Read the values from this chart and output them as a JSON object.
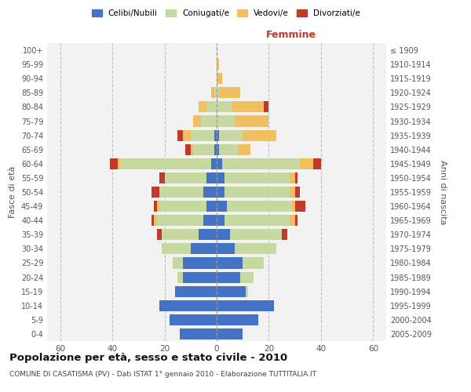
{
  "age_groups": [
    "0-4",
    "5-9",
    "10-14",
    "15-19",
    "20-24",
    "25-29",
    "30-34",
    "35-39",
    "40-44",
    "45-49",
    "50-54",
    "55-59",
    "60-64",
    "65-69",
    "70-74",
    "75-79",
    "80-84",
    "85-89",
    "90-94",
    "95-99",
    "100+"
  ],
  "birth_years": [
    "2005-2009",
    "2000-2004",
    "1995-1999",
    "1990-1994",
    "1985-1989",
    "1980-1984",
    "1975-1979",
    "1970-1974",
    "1965-1969",
    "1960-1964",
    "1955-1959",
    "1950-1954",
    "1945-1949",
    "1940-1944",
    "1935-1939",
    "1930-1934",
    "1925-1929",
    "1920-1924",
    "1915-1919",
    "1910-1914",
    "≤ 1909"
  ],
  "males": {
    "celibi": [
      14,
      18,
      22,
      16,
      13,
      13,
      10,
      7,
      5,
      4,
      5,
      4,
      2,
      1,
      1,
      0,
      0,
      0,
      0,
      0,
      0
    ],
    "coniugati": [
      0,
      0,
      0,
      0,
      2,
      4,
      11,
      14,
      18,
      18,
      17,
      16,
      35,
      8,
      9,
      6,
      4,
      1,
      0,
      0,
      0
    ],
    "vedovi": [
      0,
      0,
      0,
      0,
      0,
      0,
      0,
      0,
      1,
      1,
      0,
      0,
      1,
      1,
      3,
      3,
      3,
      1,
      0,
      0,
      0
    ],
    "divorziati": [
      0,
      0,
      0,
      0,
      0,
      0,
      0,
      2,
      1,
      1,
      3,
      2,
      3,
      2,
      2,
      0,
      0,
      0,
      0,
      0,
      0
    ]
  },
  "females": {
    "nubili": [
      10,
      16,
      22,
      11,
      9,
      10,
      7,
      5,
      3,
      4,
      3,
      3,
      2,
      1,
      1,
      0,
      0,
      0,
      0,
      0,
      0
    ],
    "coniugate": [
      0,
      0,
      0,
      1,
      5,
      8,
      16,
      20,
      25,
      25,
      25,
      25,
      30,
      7,
      9,
      7,
      6,
      1,
      0,
      0,
      0
    ],
    "vedove": [
      0,
      0,
      0,
      0,
      0,
      0,
      0,
      0,
      2,
      1,
      2,
      2,
      5,
      5,
      13,
      13,
      12,
      8,
      2,
      1,
      0
    ],
    "divorziate": [
      0,
      0,
      0,
      0,
      0,
      0,
      0,
      2,
      1,
      4,
      2,
      1,
      3,
      0,
      0,
      0,
      2,
      0,
      0,
      0,
      0
    ]
  },
  "colors": {
    "celibi": "#4472c4",
    "coniugati": "#c5d9a0",
    "vedovi": "#f0c060",
    "divorziati": "#c0392b"
  },
  "xlim": 65,
  "title": "Popolazione per età, sesso e stato civile - 2010",
  "subtitle": "COMUNE DI CASATISMA (PV) - Dati ISTAT 1° gennaio 2010 - Elaborazione TUTTITALIA.IT",
  "xlabel_right": "Femmine",
  "ylabel_left": "Fasce di età",
  "ylabel_right": "Anni di nascita",
  "legend_labels": [
    "Celibi/Nubili",
    "Coniugati/e",
    "Vedovi/e",
    "Divorziati/e"
  ],
  "bg_color": "#ffffff",
  "grid_color": "#cccccc"
}
